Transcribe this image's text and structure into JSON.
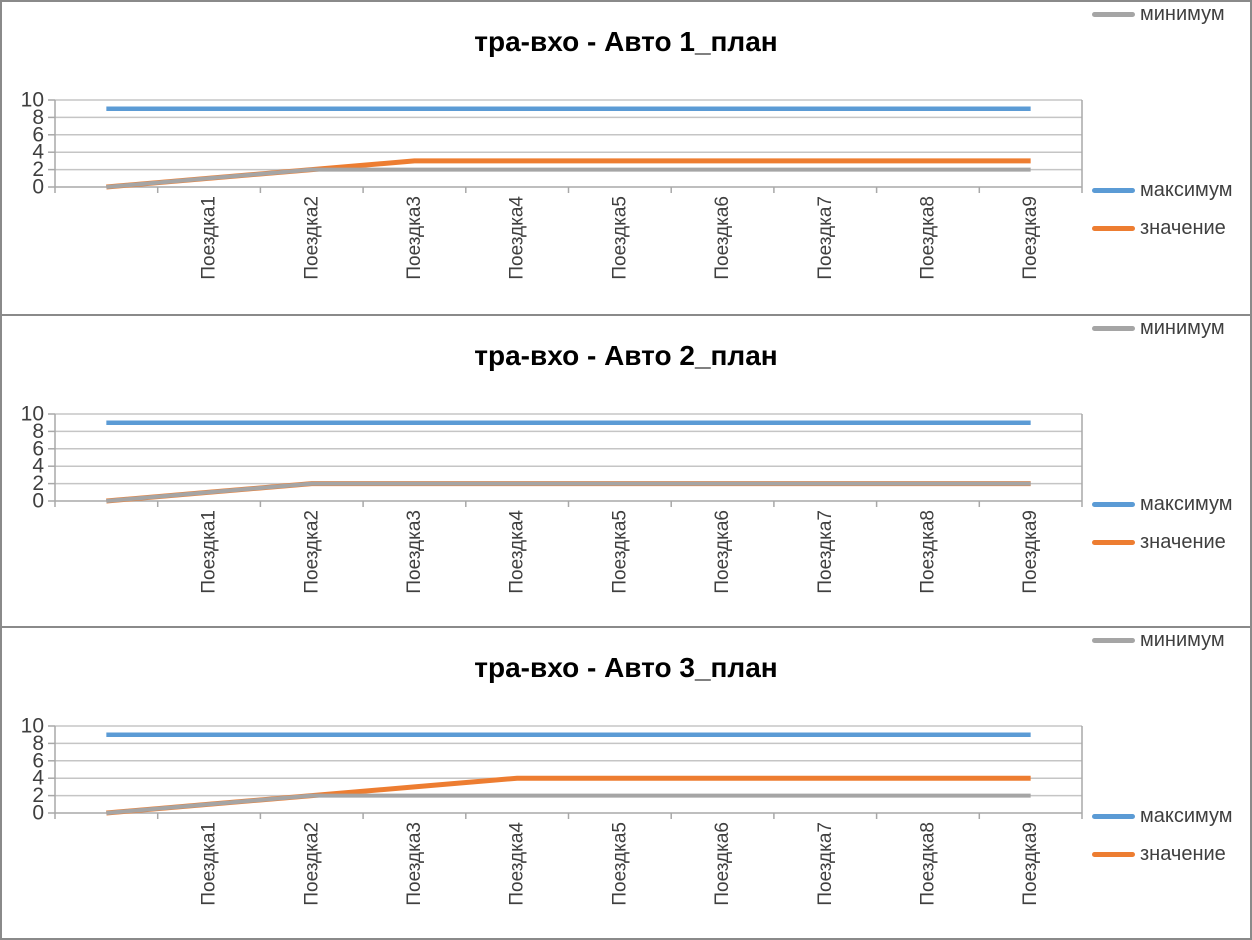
{
  "page": {
    "background": "#ffffff",
    "panel_border_color": "#8a8a8a"
  },
  "colors": {
    "maximum_line": "#5B9BD5",
    "value_line": "#ED7D31",
    "minimum_line": "#A5A5A5",
    "gridline": "#C5C5C5",
    "axis_line": "#A8A8A8",
    "tick_label": "#3F3F3F",
    "title_text": "#000000",
    "legend_text": "#3F3F3F"
  },
  "chart_data": [
    {
      "type": "line",
      "title": "тра-вхо - Авто 1_план",
      "categories": [
        "",
        "Поездка1",
        "Поездка2",
        "Поездка3",
        "Поездка4",
        "Поездка5",
        "Поездка6",
        "Поездка7",
        "Поездка8",
        "Поездка9"
      ],
      "ylim": [
        0,
        10
      ],
      "y_ticks": [
        10,
        8,
        6,
        4,
        2,
        0
      ],
      "grid": true,
      "legend_position": "right",
      "series": [
        {
          "name": "максимум",
          "color": "#5B9BD5",
          "values": [
            9,
            9,
            9,
            9,
            9,
            9,
            9,
            9,
            9,
            9
          ]
        },
        {
          "name": "значение",
          "color": "#ED7D31",
          "values": [
            0,
            1,
            2,
            3,
            3,
            3,
            3,
            3,
            3,
            3
          ]
        },
        {
          "name": "минимум",
          "color": "#A5A5A5",
          "values": [
            0,
            1,
            2,
            2,
            2,
            2,
            2,
            2,
            2,
            2
          ]
        }
      ]
    },
    {
      "type": "line",
      "title": "тра-вхо - Авто 2_план",
      "categories": [
        "",
        "Поездка1",
        "Поездка2",
        "Поездка3",
        "Поездка4",
        "Поездка5",
        "Поездка6",
        "Поездка7",
        "Поездка8",
        "Поездка9"
      ],
      "ylim": [
        0,
        10
      ],
      "y_ticks": [
        10,
        8,
        6,
        4,
        2,
        0
      ],
      "grid": true,
      "legend_position": "right",
      "series": [
        {
          "name": "максимум",
          "color": "#5B9BD5",
          "values": [
            9,
            9,
            9,
            9,
            9,
            9,
            9,
            9,
            9,
            9
          ]
        },
        {
          "name": "значение",
          "color": "#ED7D31",
          "values": [
            0,
            1,
            2,
            2,
            2,
            2,
            2,
            2,
            2,
            2
          ]
        },
        {
          "name": "минимум",
          "color": "#A5A5A5",
          "values": [
            0,
            1,
            2,
            2,
            2,
            2,
            2,
            2,
            2,
            2
          ]
        }
      ]
    },
    {
      "type": "line",
      "title": "тра-вхо - Авто 3_план",
      "categories": [
        "",
        "Поездка1",
        "Поездка2",
        "Поездка3",
        "Поездка4",
        "Поездка5",
        "Поездка6",
        "Поездка7",
        "Поездка8",
        "Поездка9"
      ],
      "ylim": [
        0,
        10
      ],
      "y_ticks": [
        10,
        8,
        6,
        4,
        2,
        0
      ],
      "grid": true,
      "legend_position": "right",
      "series": [
        {
          "name": "максимум",
          "color": "#5B9BD5",
          "values": [
            9,
            9,
            9,
            9,
            9,
            9,
            9,
            9,
            9,
            9
          ]
        },
        {
          "name": "значение",
          "color": "#ED7D31",
          "values": [
            0,
            1,
            2,
            3,
            4,
            4,
            4,
            4,
            4,
            4
          ]
        },
        {
          "name": "минимум",
          "color": "#A5A5A5",
          "values": [
            0,
            1,
            2,
            2,
            2,
            2,
            2,
            2,
            2,
            2
          ]
        }
      ]
    }
  ]
}
